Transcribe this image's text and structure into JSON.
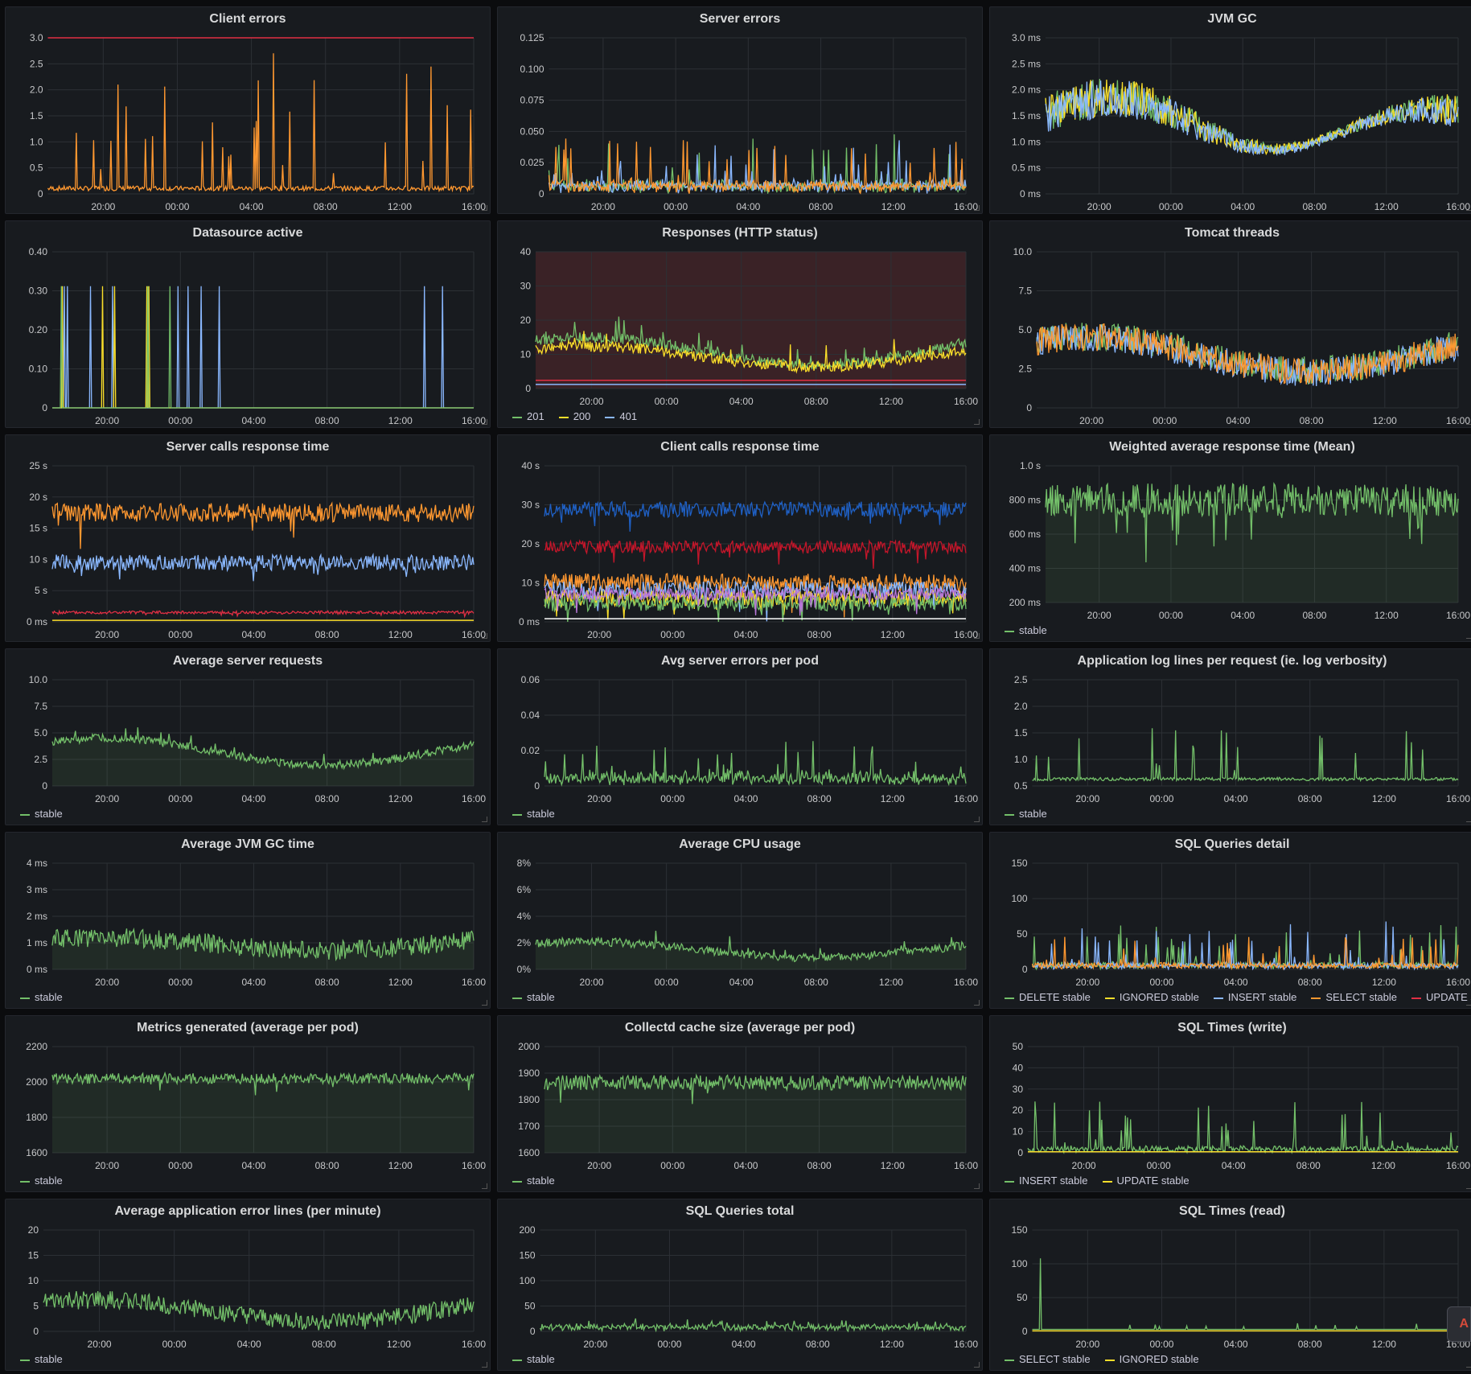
{
  "dashboard": {
    "x_ticks": [
      "20:00",
      "00:00",
      "04:00",
      "08:00",
      "12:00",
      "16:00"
    ],
    "corner_badge": "A",
    "panels": [
      {
        "id": "client-errors",
        "title": "Client errors",
        "yticks": [
          "3.0",
          "2.5",
          "2.0",
          "1.5",
          "1.0",
          "0.5",
          "0"
        ],
        "legend": [],
        "series": [
          {
            "color": "#ff9830",
            "pattern": "spiky",
            "base": 0.02,
            "amp": 0.9
          },
          {
            "color": "#e02f44",
            "pattern": "flat",
            "level": 1.0
          }
        ]
      },
      {
        "id": "server-errors",
        "title": "Server errors",
        "yticks": [
          "0.125",
          "0.100",
          "0.075",
          "0.050",
          "0.025",
          "0"
        ],
        "legend": [],
        "series": [
          {
            "color": "#73bf69",
            "pattern": "noisy-low",
            "base": 0.05,
            "amp": 0.35
          },
          {
            "color": "#8ab8ff",
            "pattern": "noisy-low",
            "base": 0.05,
            "amp": 0.3
          },
          {
            "color": "#ff9830",
            "pattern": "noisy-low",
            "base": 0.05,
            "amp": 0.35
          }
        ]
      },
      {
        "id": "jvm-gc",
        "title": "JVM GC",
        "yticks": [
          "3.0 ms",
          "2.5 ms",
          "2.0 ms",
          "1.5 ms",
          "1.0 ms",
          "0.5 ms",
          "0 ms"
        ],
        "legend": [],
        "series": [
          {
            "color": "#73bf69",
            "pattern": "wave",
            "base": 0.45,
            "amp": 0.1
          },
          {
            "color": "#fade2a",
            "pattern": "wave",
            "base": 0.45,
            "amp": 0.1
          },
          {
            "color": "#8ab8ff",
            "pattern": "wave",
            "base": 0.44,
            "amp": 0.1
          }
        ]
      },
      {
        "id": "datasource-active",
        "title": "Datasource active",
        "yticks": [
          "0.40",
          "0.30",
          "0.20",
          "0.10",
          "0"
        ],
        "legend": [],
        "series": [
          {
            "color": "#8ab8ff",
            "pattern": "pulses"
          },
          {
            "color": "#fade2a",
            "pattern": "pulses2"
          },
          {
            "color": "#73bf69",
            "pattern": "pulses3"
          }
        ]
      },
      {
        "id": "responses",
        "title": "Responses (HTTP status)",
        "yticks": [
          "40",
          "30",
          "20",
          "10",
          "0"
        ],
        "shaded": true,
        "legend": [
          {
            "label": "201",
            "color": "#73bf69"
          },
          {
            "label": "200",
            "color": "#fade2a"
          },
          {
            "label": "401",
            "color": "#8ab8ff"
          }
        ],
        "series": [
          {
            "color": "#73bf69",
            "pattern": "daily",
            "base": 0.35,
            "amp": 0.2
          },
          {
            "color": "#fade2a",
            "pattern": "daily",
            "base": 0.32,
            "amp": 0.15
          },
          {
            "color": "#e02f44",
            "pattern": "flat",
            "level": 0.06
          },
          {
            "color": "#8ab8ff",
            "pattern": "flat",
            "level": 0.03
          }
        ]
      },
      {
        "id": "tomcat-threads",
        "title": "Tomcat threads",
        "yticks": [
          "10.0",
          "7.5",
          "5.0",
          "2.5",
          "0"
        ],
        "legend": [],
        "series": [
          {
            "color": "#73bf69",
            "pattern": "daily-noisy",
            "base": 0.4,
            "amp": 0.22
          },
          {
            "color": "#8ab8ff",
            "pattern": "daily-noisy",
            "base": 0.38,
            "amp": 0.22
          },
          {
            "color": "#ff9830",
            "pattern": "daily-noisy",
            "base": 0.39,
            "amp": 0.22
          }
        ]
      },
      {
        "id": "server-calls-response-time",
        "title": "Server calls response time",
        "yticks": [
          "25 s",
          "20 s",
          "15 s",
          "10 s",
          "5 s",
          "0 ms"
        ],
        "legend": [],
        "series": [
          {
            "color": "#ff9830",
            "pattern": "band",
            "level": 0.7,
            "amp": 0.06
          },
          {
            "color": "#8ab8ff",
            "pattern": "band",
            "level": 0.38,
            "amp": 0.05
          },
          {
            "color": "#e02f44",
            "pattern": "band",
            "level": 0.06,
            "amp": 0.01
          },
          {
            "color": "#fade2a",
            "pattern": "flat",
            "level": 0.01
          }
        ]
      },
      {
        "id": "client-calls-response-time",
        "title": "Client calls response time",
        "yticks": [
          "40 s",
          "30 s",
          "20 s",
          "10 s",
          "0 ms"
        ],
        "legend": [],
        "series": [
          {
            "color": "#1f60c4",
            "pattern": "band",
            "level": 0.72,
            "amp": 0.05
          },
          {
            "color": "#c4162a",
            "pattern": "band",
            "level": 0.48,
            "amp": 0.04
          },
          {
            "color": "#ff9830",
            "pattern": "band",
            "level": 0.25,
            "amp": 0.06
          },
          {
            "color": "#8ab8ff",
            "pattern": "band",
            "level": 0.2,
            "amp": 0.06
          },
          {
            "color": "#fade2a",
            "pattern": "band",
            "level": 0.15,
            "amp": 0.05
          },
          {
            "color": "#73bf69",
            "pattern": "band",
            "level": 0.12,
            "amp": 0.05
          },
          {
            "color": "#b877d9",
            "pattern": "band",
            "level": 0.18,
            "amp": 0.04
          },
          {
            "color": "#ffffff",
            "pattern": "flat",
            "level": 0.02
          }
        ]
      },
      {
        "id": "weighted-average-response-time",
        "title": "Weighted average response time (Mean)",
        "yticks": [
          "1.0 s",
          "800 ms",
          "600 ms",
          "400 ms",
          "200 ms"
        ],
        "fill": true,
        "legend": [
          {
            "label": "stable",
            "color": "#73bf69"
          }
        ],
        "series": [
          {
            "color": "#73bf69",
            "pattern": "band",
            "level": 0.75,
            "amp": 0.12
          }
        ]
      },
      {
        "id": "average-server-requests",
        "title": "Average server requests",
        "yticks": [
          "10.0",
          "7.5",
          "5.0",
          "2.5",
          "0"
        ],
        "fill": true,
        "legend": [
          {
            "label": "stable",
            "color": "#73bf69"
          }
        ],
        "series": [
          {
            "color": "#73bf69",
            "pattern": "daily",
            "base": 0.4,
            "amp": 0.25
          }
        ]
      },
      {
        "id": "avg-server-errors-per-pod",
        "title": "Avg server errors per pod",
        "yticks": [
          "0.06",
          "0.04",
          "0.02",
          "0"
        ],
        "legend": [
          {
            "label": "stable",
            "color": "#73bf69"
          }
        ],
        "series": [
          {
            "color": "#73bf69",
            "pattern": "noisy-low",
            "base": 0.1,
            "amp": 0.35
          }
        ]
      },
      {
        "id": "application-log-lines",
        "title": "Application log lines per request (ie. log verbosity)",
        "yticks": [
          "2.5",
          "2.0",
          "1.5",
          "1.0",
          "0.5"
        ],
        "legend": [
          {
            "label": "stable",
            "color": "#73bf69"
          }
        ],
        "series": [
          {
            "color": "#73bf69",
            "pattern": "spiky",
            "base": 0.05,
            "amp": 0.5
          }
        ]
      },
      {
        "id": "average-jvm-gc-time",
        "title": "Average JVM GC time",
        "yticks": [
          "4 ms",
          "3 ms",
          "2 ms",
          "1 ms",
          "0 ms"
        ],
        "fill": true,
        "legend": [
          {
            "label": "stable",
            "color": "#73bf69"
          }
        ],
        "series": [
          {
            "color": "#73bf69",
            "pattern": "daily-noisy",
            "base": 0.3,
            "amp": 0.12
          }
        ]
      },
      {
        "id": "average-cpu-usage",
        "title": "Average CPU usage",
        "yticks": [
          "8%",
          "6%",
          "4%",
          "2%",
          "0%"
        ],
        "fill": true,
        "legend": [
          {
            "label": "stable",
            "color": "#73bf69"
          }
        ],
        "series": [
          {
            "color": "#73bf69",
            "pattern": "daily",
            "base": 0.22,
            "amp": 0.15
          }
        ]
      },
      {
        "id": "sql-queries-detail",
        "title": "SQL Queries detail",
        "yticks": [
          "150",
          "100",
          "50",
          "0"
        ],
        "legend": [
          {
            "label": "DELETE stable",
            "color": "#73bf69"
          },
          {
            "label": "IGNORED stable",
            "color": "#fade2a"
          },
          {
            "label": "INSERT stable",
            "color": "#8ab8ff"
          },
          {
            "label": "SELECT stable",
            "color": "#ff9830"
          },
          {
            "label": "UPDATE stable",
            "color": "#e02f44"
          }
        ],
        "series": [
          {
            "color": "#73bf69",
            "pattern": "noisy-low",
            "base": 0.03,
            "amp": 0.4
          },
          {
            "color": "#8ab8ff",
            "pattern": "noisy-low",
            "base": 0.02,
            "amp": 0.45
          },
          {
            "color": "#ff9830",
            "pattern": "noisy-low",
            "base": 0.02,
            "amp": 0.3
          }
        ]
      },
      {
        "id": "metrics-generated",
        "title": "Metrics generated (average per pod)",
        "yticks": [
          "2200",
          "2000",
          "1800",
          "1600"
        ],
        "fill": true,
        "legend": [
          {
            "label": "stable",
            "color": "#73bf69"
          }
        ],
        "series": [
          {
            "color": "#73bf69",
            "pattern": "band",
            "level": 0.7,
            "amp": 0.05
          }
        ]
      },
      {
        "id": "collectd-cache-size",
        "title": "Collectd cache size (average per pod)",
        "yticks": [
          "2000",
          "1900",
          "1800",
          "1700",
          "1600"
        ],
        "fill": true,
        "legend": [
          {
            "label": "stable",
            "color": "#73bf69"
          }
        ],
        "series": [
          {
            "color": "#73bf69",
            "pattern": "band",
            "level": 0.66,
            "amp": 0.07
          }
        ]
      },
      {
        "id": "sql-times-write",
        "title": "SQL Times (write)",
        "yticks": [
          "50",
          "40",
          "30",
          "20",
          "10",
          "0"
        ],
        "legend": [
          {
            "label": "INSERT stable",
            "color": "#73bf69"
          },
          {
            "label": "UPDATE stable",
            "color": "#fade2a"
          }
        ],
        "series": [
          {
            "color": "#73bf69",
            "pattern": "noisy-low",
            "base": 0.02,
            "amp": 0.5
          },
          {
            "color": "#fade2a",
            "pattern": "flat",
            "level": 0.01
          }
        ]
      },
      {
        "id": "average-application-error-lines",
        "title": "Average application error lines (per minute)",
        "yticks": [
          "20",
          "15",
          "10",
          "5",
          "0"
        ],
        "legend": [
          {
            "label": "stable",
            "color": "#73bf69"
          }
        ],
        "series": [
          {
            "color": "#73bf69",
            "pattern": "daily-noisy",
            "base": 0.15,
            "amp": 0.22
          }
        ]
      },
      {
        "id": "sql-queries-total",
        "title": "SQL Queries total",
        "yticks": [
          "200",
          "150",
          "100",
          "50",
          "0"
        ],
        "legend": [
          {
            "label": "stable",
            "color": "#73bf69"
          }
        ],
        "series": [
          {
            "color": "#73bf69",
            "pattern": "noisy-low",
            "base": 0.03,
            "amp": 0.1
          }
        ]
      },
      {
        "id": "sql-times-read",
        "title": "SQL Times (read)",
        "yticks": [
          "150",
          "100",
          "50",
          "0"
        ],
        "legend": [
          {
            "label": "SELECT stable",
            "color": "#73bf69"
          },
          {
            "label": "IGNORED stable",
            "color": "#fade2a"
          }
        ],
        "series": [
          {
            "color": "#73bf69",
            "pattern": "flat-spike",
            "level": 0.02
          },
          {
            "color": "#fade2a",
            "pattern": "flat",
            "level": 0.005
          }
        ]
      }
    ]
  }
}
